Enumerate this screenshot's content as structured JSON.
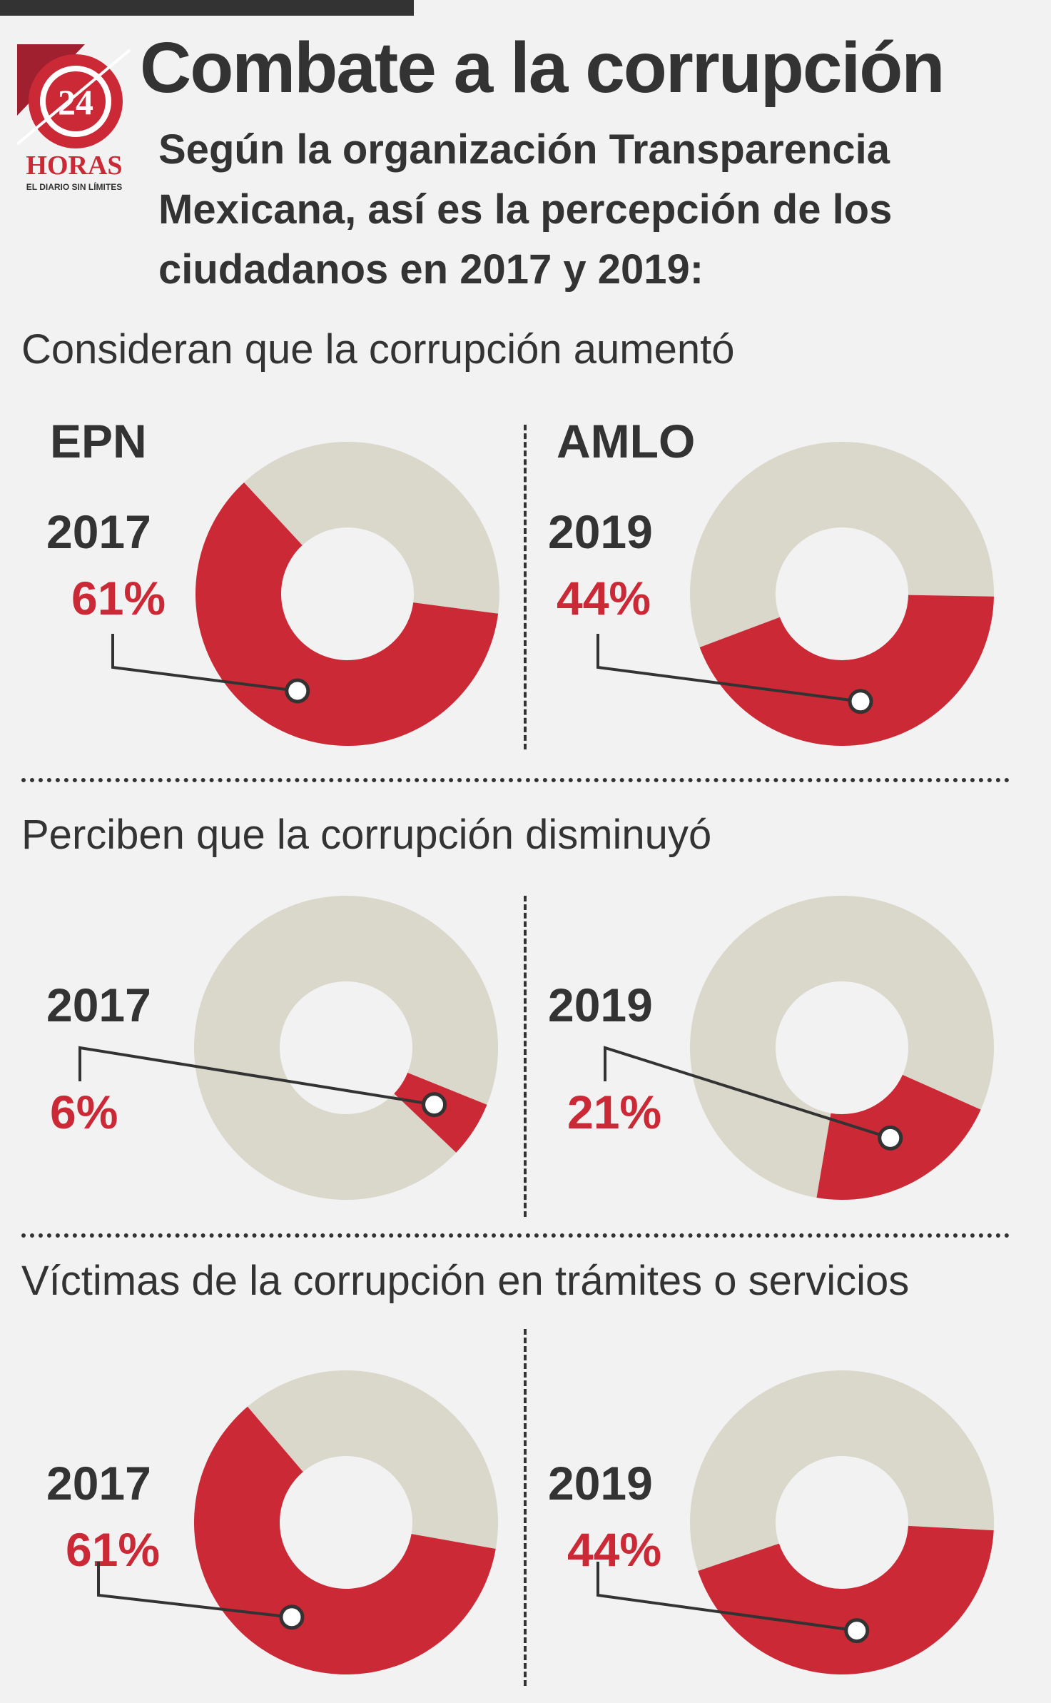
{
  "header": {
    "title": "Combate a la corrupción",
    "subtitle": "Según la organización Transparencia Mexicana, así es la percepción de los ciudadanos en 2017 y 2019:"
  },
  "logo": {
    "number": "24",
    "wordmark": "HORAS",
    "tagline": "EL DIARIO SIN LÍMITES"
  },
  "colors": {
    "accent": "#cc2936",
    "remainder": "#dad7cb",
    "text": "#333333",
    "background": "#f2f2f2"
  },
  "columns": {
    "left": "EPN",
    "right": "AMLO"
  },
  "sections": [
    {
      "title": "Consideran que la corrupción aumentó",
      "left": {
        "year": "2017",
        "pct_label": "61%"
      },
      "right": {
        "year": "2019",
        "pct_label": "44%"
      }
    },
    {
      "title": "Perciben que la corrupción disminuyó",
      "left": {
        "year": "2017",
        "pct_label": "6%"
      },
      "right": {
        "year": "2019",
        "pct_label": "21%"
      }
    },
    {
      "title": "Víctimas de la corrupción en trámites o servicios",
      "left": {
        "year": "2017",
        "pct_label": "61%"
      },
      "right": {
        "year": "2019",
        "pct_label": "44%"
      }
    }
  ],
  "chart_data": [
    {
      "type": "pie",
      "title": "Consideran que la corrupción aumentó",
      "group": "EPN",
      "year": "2017",
      "values": [
        61,
        39
      ]
    },
    {
      "type": "pie",
      "title": "Consideran que la corrupción aumentó",
      "group": "AMLO",
      "year": "2019",
      "values": [
        44,
        56
      ]
    },
    {
      "type": "pie",
      "title": "Perciben que la corrupción disminuyó",
      "group": "EPN",
      "year": "2017",
      "values": [
        6,
        94
      ]
    },
    {
      "type": "pie",
      "title": "Perciben que la corrupción disminuyó",
      "group": "AMLO",
      "year": "2019",
      "values": [
        21,
        79
      ]
    },
    {
      "type": "pie",
      "title": "Víctimas de la corrupción en trámites o servicios",
      "group": "EPN",
      "year": "2017",
      "values": [
        61,
        39
      ]
    },
    {
      "type": "pie",
      "title": "Víctimas de la corrupción en trámites o servicios",
      "group": "AMLO",
      "year": "2019",
      "values": [
        44,
        56
      ]
    }
  ]
}
